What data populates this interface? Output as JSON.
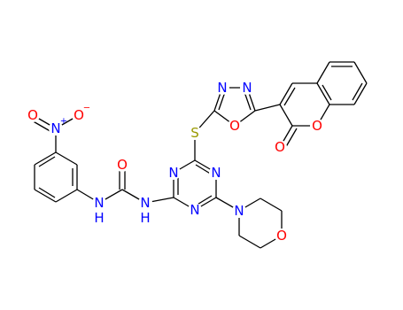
{
  "atoms": [
    {
      "label": "O"
    },
    {
      "label": "N",
      "charge": "+"
    },
    {
      "label": "O",
      "charge": "−"
    },
    {
      "label": "N"
    },
    {
      "label": "H"
    },
    {
      "label": "O"
    },
    {
      "label": "N"
    },
    {
      "label": "H"
    },
    {
      "label": "N"
    },
    {
      "label": "N"
    },
    {
      "label": "N"
    },
    {
      "label": "S"
    },
    {
      "label": "N"
    },
    {
      "label": "N"
    },
    {
      "label": "O"
    },
    {
      "label": "O"
    },
    {
      "label": "O"
    },
    {
      "label": "N"
    },
    {
      "label": "O"
    }
  ]
}
